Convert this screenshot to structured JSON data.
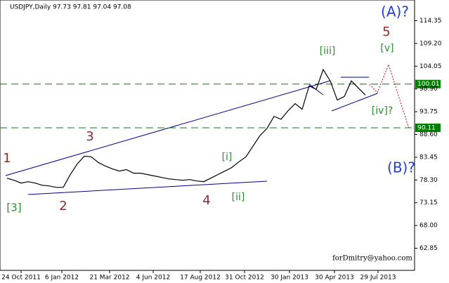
{
  "chart_data": {
    "type": "line",
    "title": "USDJPY,Daily  97.73 97.81 97.04 97.08",
    "values": [
      78.72,
      78.24,
      77.6,
      77.92,
      77.6,
      77.11,
      76.95,
      76.63,
      76.63,
      79.52,
      81.93,
      83.7,
      83.54,
      82.25,
      81.45,
      80.81,
      80.32,
      80.65,
      79.84,
      79.84,
      79.52,
      79.2,
      78.88,
      78.56,
      78.4,
      78.24,
      78.4,
      78.08,
      77.92,
      78.72,
      79.52,
      80.32,
      81.13,
      82.41,
      83.54,
      85.95,
      88.36,
      89.96,
      92.69,
      92.05,
      93.98,
      95.58,
      94.3,
      99.6,
      98.79,
      103.29,
      100.72,
      96.39,
      97.19,
      100.72,
      99.12,
      97.51
    ],
    "color": "#000000",
    "xlim": [
      -1,
      58
    ],
    "xticks": [
      {
        "value": 2,
        "label": "24 Oct 2011"
      },
      {
        "value": 7.8,
        "label": "6 Jan 2012"
      },
      {
        "value": 14.6,
        "label": "21 Mar 2012"
      },
      {
        "value": 20.8,
        "label": "4 Jun 2012"
      },
      {
        "value": 27.5,
        "label": "17 Aug 2012"
      },
      {
        "value": 33.8,
        "label": "31 Oct 2012"
      },
      {
        "value": 40.2,
        "label": "30 Jan 2013"
      },
      {
        "value": 46.6,
        "label": "30 Apr 2013"
      },
      {
        "value": 52.8,
        "label": "29 Jul 2013"
      }
    ],
    "ylim": [
      57.85,
      119.03
    ],
    "yticks": [
      {
        "value": 114.35,
        "label": "114.35"
      },
      {
        "value": 109.2,
        "label": "109.20"
      },
      {
        "value": 104.05,
        "label": "104.05"
      },
      {
        "value": 98.9,
        "label": "98.90"
      },
      {
        "value": 93.75,
        "label": "93.75"
      },
      {
        "value": 88.6,
        "label": "88.60"
      },
      {
        "value": 83.45,
        "label": "83.45"
      },
      {
        "value": 78.3,
        "label": "78.30"
      },
      {
        "value": 73.15,
        "label": "73.15"
      },
      {
        "value": 68.0,
        "label": "68.00"
      },
      {
        "value": 62.85,
        "label": "62.85"
      }
    ],
    "levels": [
      100.01,
      90.11
    ],
    "level_color": "#008000",
    "annotations": {
      "w1": "1",
      "w2": "2",
      "w3": "3",
      "w4": "4",
      "w5": "5",
      "g3": "[3]",
      "gi": "[i]",
      "gii": "[ii]",
      "giii": "[iii]",
      "giv": "[iv]?",
      "gv": "[v]",
      "A": "(A)?",
      "B": "(B)?"
    },
    "watermark": "forDmitry@yahoo.com"
  }
}
